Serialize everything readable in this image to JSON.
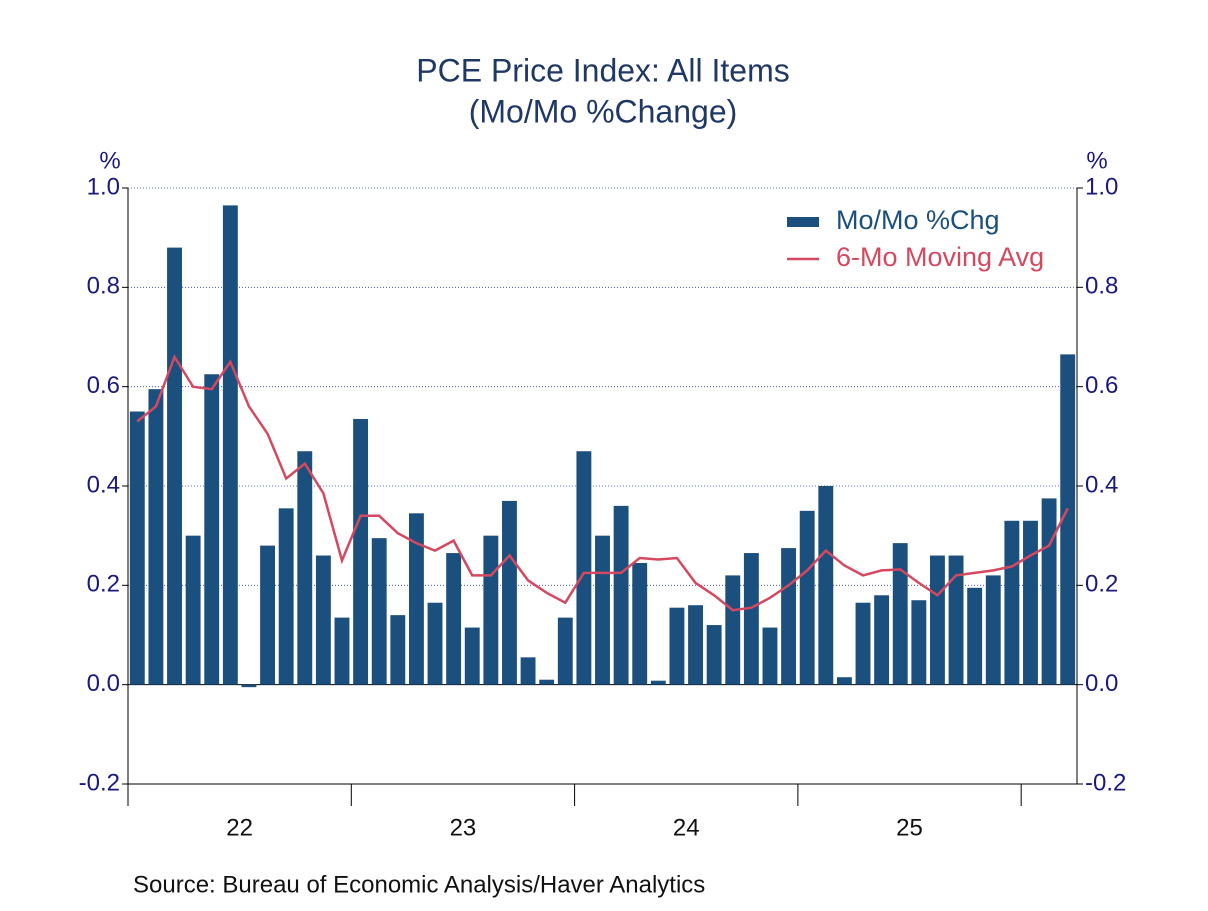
{
  "chart_data": {
    "type": "bar_line",
    "title": "PCE Price Index: All Items",
    "subtitle": "(Mo/Mo %Change)",
    "y_label": "%",
    "y2_label": "%",
    "source": "Source:  Bureau of Economic Analysis/Haver Analytics",
    "year_labels": [
      "22",
      "23",
      "24",
      "25"
    ],
    "categories": [
      null,
      null,
      null,
      null,
      null,
      null,
      null,
      null,
      null,
      null,
      null,
      null,
      null,
      null,
      null,
      null,
      null,
      null,
      null,
      null,
      null,
      null,
      null,
      null,
      null,
      null,
      null,
      null,
      null,
      null,
      null,
      null,
      null,
      null,
      null,
      null,
      null,
      null,
      null,
      null,
      null,
      null,
      null,
      null,
      null,
      null,
      null,
      null,
      null,
      null,
      null
    ],
    "series": [
      {
        "name": "Mo/Mo %Chg",
        "kind": "bar",
        "color": "#1b4f7e",
        "values": [
          0.55,
          0.595,
          0.88,
          0.3,
          0.625,
          0.965,
          -0.005,
          0.28,
          0.355,
          0.47,
          0.26,
          0.135,
          0.535,
          0.295,
          0.14,
          0.345,
          0.165,
          0.265,
          0.115,
          0.3,
          0.37,
          0.055,
          0.01,
          0.135,
          0.47,
          0.3,
          0.36,
          0.245,
          0.008,
          0.155,
          0.16,
          0.12,
          0.22,
          0.265,
          0.115,
          0.275,
          0.35,
          0.4,
          0.015,
          0.165,
          0.18,
          0.285,
          0.17,
          0.26,
          0.26,
          0.195,
          0.22,
          0.33,
          0.33,
          0.375,
          0.665
        ]
      },
      {
        "name": "6-Mo Moving Avg",
        "kind": "line",
        "color": "#d4495f",
        "values": [
          0.53,
          0.56,
          0.66,
          0.6,
          0.595,
          0.65,
          0.56,
          0.505,
          0.415,
          0.445,
          0.385,
          0.25,
          0.34,
          0.34,
          0.305,
          0.285,
          0.27,
          0.29,
          0.22,
          0.22,
          0.26,
          0.21,
          0.185,
          0.165,
          0.225,
          0.225,
          0.225,
          0.255,
          0.252,
          0.255,
          0.205,
          0.18,
          0.15,
          0.155,
          0.175,
          0.2,
          0.23,
          0.27,
          0.24,
          0.22,
          0.23,
          0.232,
          0.205,
          0.18,
          0.22,
          0.225,
          0.23,
          0.238,
          0.26,
          0.28,
          0.355
        ]
      }
    ],
    "ylim": [
      -0.2,
      1.0
    ],
    "yticks": [
      {
        "value": 1,
        "label": "1.0"
      },
      0.8,
      0.6,
      0.4,
      0.2,
      {
        "value": 0,
        "label": "0.0"
      },
      -0.2
    ],
    "grid": true
  }
}
